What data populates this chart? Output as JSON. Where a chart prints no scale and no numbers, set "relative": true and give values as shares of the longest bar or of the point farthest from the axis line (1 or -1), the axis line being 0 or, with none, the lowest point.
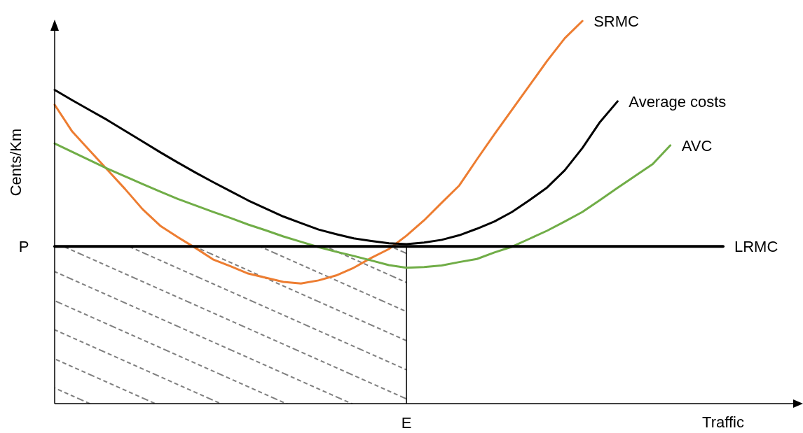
{
  "chart_data": {
    "type": "line",
    "relative": true,
    "xlabel": "Traffic",
    "ylabel": "Cents/Km",
    "categories": [
      null,
      null,
      null,
      null,
      null,
      null,
      null,
      null,
      null,
      null,
      null,
      null,
      null,
      null,
      null,
      null,
      null,
      null,
      null,
      null,
      null,
      null,
      null,
      null,
      null,
      null,
      null,
      null,
      null,
      null,
      null,
      null,
      null,
      null,
      null,
      null,
      null,
      null,
      null
    ],
    "series": [
      {
        "name": "SRMC",
        "color": "#ed7d31",
        "values": [
          0.781,
          0.711,
          0.661,
          0.611,
          0.561,
          0.508,
          0.465,
          0.435,
          0.407,
          0.377,
          0.359,
          0.34,
          0.329,
          0.318,
          0.314,
          0.322,
          0.335,
          0.355,
          0.381,
          0.404,
          0.439,
          0.479,
          0.525,
          0.57,
          0.638,
          0.704,
          0.768,
          0.832,
          0.896,
          0.955,
          1,
          null,
          null,
          null,
          null,
          null,
          null,
          null,
          null
        ]
      },
      {
        "name": "Average costs",
        "color": "#000000",
        "values": [
          0.82,
          0.793,
          0.767,
          0.741,
          0.713,
          0.685,
          0.657,
          0.63,
          0.604,
          0.579,
          0.555,
          0.531,
          0.51,
          0.489,
          0.472,
          0.455,
          0.443,
          0.432,
          0.425,
          0.419,
          0.417,
          0.421,
          0.428,
          0.44,
          0.457,
          0.476,
          0.501,
          0.532,
          0.565,
          0.61,
          0.668,
          0.736,
          0.79,
          null,
          null,
          null,
          null,
          null,
          null
        ]
      },
      {
        "name": "AVC",
        "color": "#70ad47",
        "values": [
          0.68,
          0.658,
          0.636,
          0.614,
          0.594,
          0.574,
          0.554,
          0.535,
          0.518,
          0.501,
          0.485,
          0.468,
          0.453,
          0.437,
          0.423,
          0.409,
          0.397,
          0.386,
          0.374,
          0.362,
          0.355,
          0.357,
          0.361,
          0.37,
          0.378,
          0.395,
          0.41,
          0.431,
          0.452,
          0.476,
          0.501,
          0.532,
          0.564,
          0.595,
          0.626,
          0.675,
          null,
          null,
          null
        ]
      },
      {
        "name": "LRMC",
        "color": "#000000",
        "values": [
          0.411,
          0.411,
          0.411,
          0.411,
          0.411,
          0.411,
          0.411,
          0.411,
          0.411,
          0.411,
          0.411,
          0.411,
          0.411,
          0.411,
          0.411,
          0.411,
          0.411,
          0.411,
          0.411,
          0.411,
          0.411,
          0.411,
          0.411,
          0.411,
          0.411,
          0.411,
          0.411,
          0.411,
          0.411,
          0.411,
          0.411,
          0.411,
          0.411,
          0.411,
          0.411,
          0.411,
          0.411,
          0.411,
          0.411
        ]
      }
    ],
    "annotations": [
      "P",
      "E"
    ]
  }
}
